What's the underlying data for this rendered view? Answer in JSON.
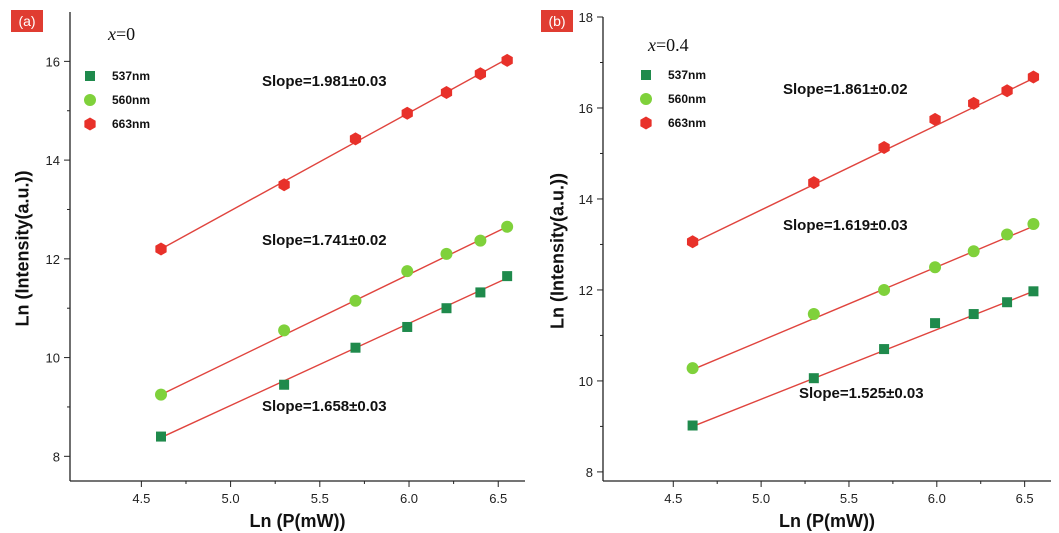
{
  "colors": {
    "537nm": "#1f8a4c",
    "560nm": "#7fd13b",
    "663nm": "#e8312a",
    "fit_line": "#e0443e",
    "panel_badge": "#e03c31"
  },
  "chart_data": [
    {
      "type": "scatter",
      "panel": "(a)",
      "composition": "x=0",
      "composition_var": "x",
      "composition_val": "=0",
      "xlabel": "Ln (P(mW))",
      "ylabel": "Ln (Intensity(a.u.))",
      "xlim": [
        4.1,
        6.65
      ],
      "ylim": [
        7.5,
        17.0
      ],
      "xticks": [
        4.5,
        5.0,
        5.5,
        6.0,
        6.5
      ],
      "xtick_labels": [
        "4.5",
        "5.0",
        "5.5",
        "6.0",
        "6.5"
      ],
      "yticks": [
        8,
        10,
        12,
        14,
        16
      ],
      "ytick_labels": [
        "8",
        "10",
        "12",
        "14",
        "16"
      ],
      "legend_position": "top-left",
      "x": [
        4.61,
        5.3,
        5.7,
        5.99,
        6.21,
        6.4,
        6.55
      ],
      "series": [
        {
          "name": "537nm",
          "marker": "square",
          "values": [
            8.4,
            9.45,
            10.2,
            10.62,
            11.0,
            11.32,
            11.65
          ],
          "fit": [
            8.38,
            11.61
          ],
          "slope_label": "Slope=1.658±0.03"
        },
        {
          "name": "560nm",
          "marker": "circle",
          "values": [
            9.25,
            10.55,
            11.15,
            11.75,
            12.1,
            12.37,
            12.65
          ],
          "fit": [
            9.25,
            12.65
          ],
          "slope_label": "Slope=1.741±0.02"
        },
        {
          "name": "663nm",
          "marker": "hexagon",
          "values": [
            12.2,
            13.5,
            14.43,
            14.95,
            15.37,
            15.75,
            16.02
          ],
          "fit": [
            12.2,
            16.05
          ],
          "slope_label": "Slope=1.981±0.03"
        }
      ]
    },
    {
      "type": "scatter",
      "panel": "(b)",
      "composition": "x=0.4",
      "composition_var": "x",
      "composition_val": "=0.4",
      "xlabel": "Ln (P(mW))",
      "ylabel": "Ln (Intensity(a.u.))",
      "xlim": [
        4.1,
        6.65
      ],
      "ylim": [
        7.8,
        18.0
      ],
      "xticks": [
        4.5,
        5.0,
        5.5,
        6.0,
        6.5
      ],
      "xtick_labels": [
        "4.5",
        "5.0",
        "5.5",
        "6.0",
        "6.5"
      ],
      "yticks": [
        8,
        10,
        12,
        14,
        16,
        18
      ],
      "ytick_labels": [
        "8",
        "10",
        "12",
        "14",
        "16",
        "18"
      ],
      "legend_position": "top-left",
      "x": [
        4.61,
        5.3,
        5.7,
        5.99,
        6.21,
        6.4,
        6.55
      ],
      "series": [
        {
          "name": "537nm",
          "marker": "square",
          "values": [
            9.02,
            10.06,
            10.7,
            11.27,
            11.47,
            11.73,
            11.97
          ],
          "fit": [
            9.0,
            11.97
          ],
          "slope_label": "Slope=1.525±0.03"
        },
        {
          "name": "560nm",
          "marker": "circle",
          "values": [
            10.28,
            11.47,
            12.0,
            12.5,
            12.85,
            13.22,
            13.45
          ],
          "fit": [
            10.25,
            13.4
          ],
          "slope_label": "Slope=1.619±0.03"
        },
        {
          "name": "663nm",
          "marker": "hexagon",
          "values": [
            13.06,
            14.36,
            15.13,
            15.75,
            16.1,
            16.38,
            16.68
          ],
          "fit": [
            13.03,
            16.65
          ],
          "slope_label": "Slope=1.861±0.02"
        }
      ]
    }
  ]
}
